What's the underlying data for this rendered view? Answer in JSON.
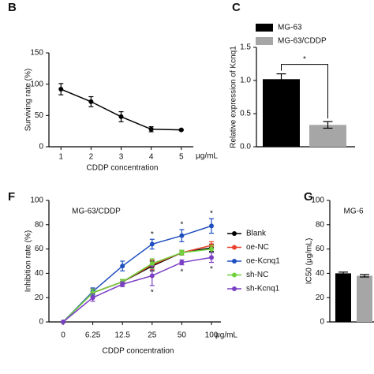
{
  "chart_data": [
    {
      "type": "line",
      "panel": "B",
      "x_label": "CDDP concentration",
      "x_unit": "μg/mL",
      "y_label": "Surviving rate (%)",
      "x": [
        1,
        2,
        3,
        4,
        5
      ],
      "xlim": [
        0.6,
        5.4
      ],
      "xticks": [
        1,
        2,
        3,
        4,
        5
      ],
      "values": [
        92,
        72,
        48,
        28,
        27
      ],
      "errors": [
        9,
        8,
        8,
        4,
        1
      ],
      "color": "#000000",
      "ylim": [
        0,
        150
      ],
      "yticks": [
        0,
        50,
        100,
        150
      ]
    },
    {
      "type": "bar",
      "panel": "C",
      "y_label": "Relative expression of Kcnq1",
      "significance": "*",
      "series": [
        {
          "name": "MG-63",
          "color": "#000000",
          "values": [
            1.02
          ],
          "errors": [
            0.08
          ]
        },
        {
          "name": "MG-63/CDDP",
          "color": "#a6a6a6",
          "values": [
            0.33
          ],
          "errors": [
            0.05
          ]
        }
      ],
      "ylim": [
        0,
        1.5
      ],
      "yticks": [
        {
          "value": 0,
          "label": "0.0"
        },
        0.5,
        {
          "value": 1,
          "label": "1.0"
        },
        1.5
      ]
    },
    {
      "type": "line",
      "panel": "F",
      "title": "MG-63/CDDP",
      "x_label": "CDDP concentration",
      "x_unit": "μg/mL",
      "y_label": "Inhibition rate (%)",
      "categories": [
        "0",
        "6.25",
        "12.5",
        "25",
        "50",
        "100"
      ],
      "series": [
        {
          "name": "Blank",
          "color": "#000000",
          "values": [
            0,
            24,
            33,
            46,
            57,
            61
          ],
          "errors": [
            0,
            3,
            2,
            4,
            2,
            3
          ]
        },
        {
          "name": "oe-NC",
          "color": "#e8412c",
          "values": [
            0,
            24,
            33,
            47,
            57,
            63
          ],
          "errors": [
            0,
            3,
            2,
            4,
            2,
            3
          ]
        },
        {
          "name": "oe-Kcnq1",
          "color": "#1f4fbf",
          "values": [
            0,
            25,
            46,
            64,
            71,
            79
          ],
          "errors": [
            0,
            3,
            4,
            4,
            5,
            6
          ],
          "significance": [
            null,
            null,
            null,
            "*",
            "*",
            "*"
          ]
        },
        {
          "name": "sh-NC",
          "color": "#6fd13b",
          "values": [
            0,
            24,
            33,
            48,
            57,
            60
          ],
          "errors": [
            0,
            3,
            2,
            4,
            2,
            3
          ]
        },
        {
          "name": "sh-Kcnq1",
          "color": "#7a3fc4",
          "values": [
            0,
            20,
            31,
            38,
            49,
            53
          ],
          "errors": [
            0,
            3,
            2,
            8,
            2,
            4
          ],
          "significance": [
            null,
            null,
            null,
            "*",
            "*",
            "*"
          ]
        }
      ],
      "ylim": [
        0,
        100
      ],
      "yticks": [
        0,
        20,
        40,
        60,
        80,
        100
      ]
    },
    {
      "type": "bar",
      "panel": "G",
      "title": "MG-6",
      "y_label": "IC50 (μg/mL)",
      "values": [
        40,
        38
      ],
      "errors": [
        1,
        1
      ],
      "colors": [
        "#000000",
        "#a6a6a6"
      ],
      "ylim": [
        0,
        100
      ],
      "yticks": [
        0,
        20,
        40,
        60,
        80,
        100
      ]
    }
  ]
}
